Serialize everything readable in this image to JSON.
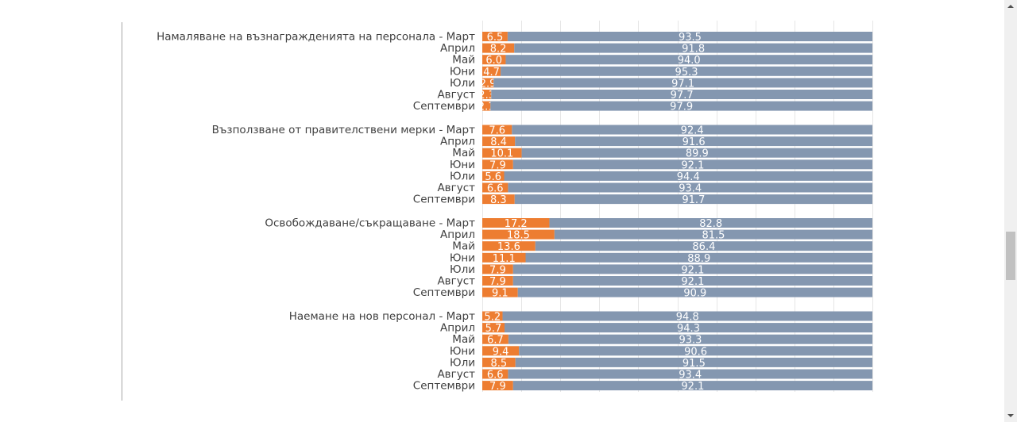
{
  "chart_data": {
    "type": "bar",
    "orientation": "horizontal",
    "stacked": "100%",
    "title": "",
    "xlabel": "",
    "ylabel": "",
    "xlim": [
      0,
      100
    ],
    "grid": true,
    "legend": "none",
    "colors": {
      "series1": "#ed7d31",
      "series2": "#8497b0",
      "grid": "#e6e6e6",
      "label": "#404040",
      "value_label": "#ffffff"
    },
    "groups": [
      {
        "name": "Намаляване на възнагражденията на персонала",
        "categories": [
          "Намаляване на възнагражденията на персонала - Март",
          "Април",
          "Май",
          "Юни",
          "Юли",
          "Август",
          "Септември"
        ],
        "series": [
          {
            "name": "series1",
            "values": [
              "6.5",
              "8.2",
              "6.0",
              "4.7",
              "2.9",
              "2.3",
              "2.1"
            ]
          },
          {
            "name": "series2",
            "values": [
              "93.5",
              "91.8",
              "94.0",
              "95.3",
              "97.1",
              "97.7",
              "97.9"
            ]
          }
        ]
      },
      {
        "name": "Възползване от правителствени мерки",
        "categories": [
          "Възползване от правителствени мерки - Март",
          "Април",
          "Май",
          "Юни",
          "Юли",
          "Август",
          "Септември"
        ],
        "series": [
          {
            "name": "series1",
            "values": [
              "7.6",
              "8.4",
              "10.1",
              "7.9",
              "5.6",
              "6.6",
              "8.3"
            ]
          },
          {
            "name": "series2",
            "values": [
              "92.4",
              "91.6",
              "89.9",
              "92.1",
              "94.4",
              "93.4",
              "91.7"
            ]
          }
        ]
      },
      {
        "name": "Освобождаване/съкращаване",
        "categories": [
          "Освобождаване/съкращаване - Март",
          "Април",
          "Май",
          "Юни",
          "Юли",
          "Август",
          "Септември"
        ],
        "series": [
          {
            "name": "series1",
            "values": [
              "17.2",
              "18.5",
              "13.6",
              "11.1",
              "7.9",
              "7.9",
              "9.1"
            ]
          },
          {
            "name": "series2",
            "values": [
              "82.8",
              "81.5",
              "86.4",
              "88.9",
              "92.1",
              "92.1",
              "90.9"
            ]
          }
        ]
      },
      {
        "name": "Наемане на нов персонал",
        "categories": [
          "Наемане на нов персонал - Март",
          "Април",
          "Май",
          "Юни",
          "Юли",
          "Август",
          "Септември"
        ],
        "series": [
          {
            "name": "series1",
            "values": [
              "5.2",
              "5.7",
              "6.7",
              "9.4",
              "8.5",
              "6.6",
              "7.9"
            ]
          },
          {
            "name": "series2",
            "values": [
              "94.8",
              "94.3",
              "93.3",
              "90.6",
              "91.5",
              "93.4",
              "92.1"
            ]
          }
        ]
      }
    ]
  }
}
